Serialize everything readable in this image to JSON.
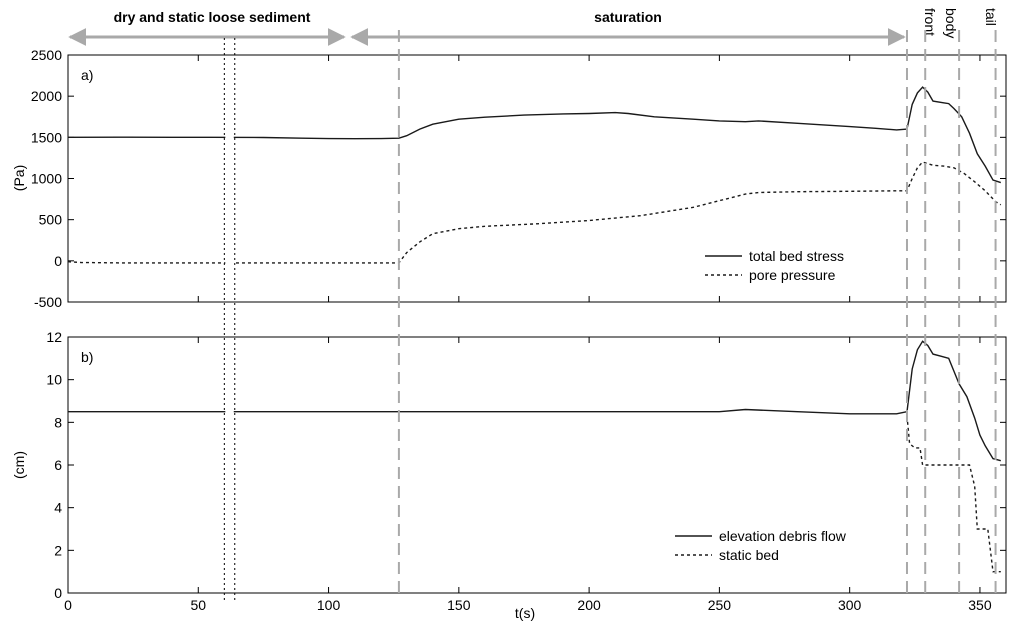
{
  "figure": {
    "phase_labels": {
      "dry": "dry and static loose sediment",
      "saturation": "saturation",
      "front": "front",
      "body": "body",
      "tail": "tail"
    },
    "xlabel": "t(s)"
  },
  "colors": {
    "line": "#1a1a1a",
    "gray": "#a9a9a9",
    "axis": "#000000"
  },
  "chart_data": [
    {
      "type": "line",
      "panel_label": "a)",
      "ylabel": "(Pa)",
      "xlim": [
        0,
        360
      ],
      "ylim": [
        -500,
        2500
      ],
      "x_ticks": [
        0,
        50,
        100,
        150,
        200,
        250,
        300,
        350
      ],
      "y_ticks": [
        -500,
        0,
        500,
        1000,
        1500,
        2000,
        2500
      ],
      "legend_position": "lower-right",
      "series": [
        {
          "name": "total bed stress",
          "style": "solid",
          "points": [
            [
              0,
              1500
            ],
            [
              20,
              1502
            ],
            [
              40,
              1500
            ],
            [
              55,
              1500
            ],
            [
              75,
              1498
            ],
            [
              90,
              1490
            ],
            [
              100,
              1485
            ],
            [
              110,
              1483
            ],
            [
              120,
              1485
            ],
            [
              127,
              1490
            ],
            [
              130,
              1520
            ],
            [
              135,
              1600
            ],
            [
              140,
              1660
            ],
            [
              150,
              1720
            ],
            [
              160,
              1745
            ],
            [
              175,
              1770
            ],
            [
              190,
              1785
            ],
            [
              200,
              1790
            ],
            [
              210,
              1800
            ],
            [
              215,
              1790
            ],
            [
              225,
              1750
            ],
            [
              240,
              1720
            ],
            [
              250,
              1700
            ],
            [
              260,
              1690
            ],
            [
              265,
              1700
            ],
            [
              280,
              1670
            ],
            [
              300,
              1630
            ],
            [
              310,
              1610
            ],
            [
              318,
              1590
            ],
            [
              322,
              1600
            ],
            [
              324,
              1900
            ],
            [
              326,
              2040
            ],
            [
              328,
              2110
            ],
            [
              330,
              2050
            ],
            [
              332,
              1940
            ],
            [
              336,
              1920
            ],
            [
              338,
              1910
            ],
            [
              340,
              1850
            ],
            [
              343,
              1750
            ],
            [
              346,
              1550
            ],
            [
              349,
              1300
            ],
            [
              352,
              1150
            ],
            [
              355,
              980
            ],
            [
              358,
              950
            ]
          ]
        },
        {
          "name": "pore pressure",
          "style": "dashed",
          "points": [
            [
              0,
              -10
            ],
            [
              5,
              -20
            ],
            [
              20,
              -25
            ],
            [
              55,
              -25
            ],
            [
              75,
              -25
            ],
            [
              100,
              -25
            ],
            [
              127,
              -25
            ],
            [
              130,
              100
            ],
            [
              135,
              230
            ],
            [
              140,
              330
            ],
            [
              150,
              390
            ],
            [
              160,
              420
            ],
            [
              180,
              450
            ],
            [
              200,
              490
            ],
            [
              220,
              550
            ],
            [
              240,
              650
            ],
            [
              260,
              810
            ],
            [
              265,
              830
            ],
            [
              280,
              840
            ],
            [
              300,
              845
            ],
            [
              318,
              850
            ],
            [
              322,
              850
            ],
            [
              324,
              1000
            ],
            [
              326,
              1130
            ],
            [
              328,
              1200
            ],
            [
              330,
              1180
            ],
            [
              332,
              1160
            ],
            [
              336,
              1150
            ],
            [
              340,
              1130
            ],
            [
              344,
              1060
            ],
            [
              348,
              960
            ],
            [
              352,
              850
            ],
            [
              356,
              720
            ],
            [
              358,
              680
            ]
          ]
        }
      ]
    },
    {
      "type": "line",
      "panel_label": "b)",
      "ylabel": "(cm)",
      "xlim": [
        0,
        360
      ],
      "ylim": [
        0,
        12
      ],
      "x_ticks": [
        0,
        50,
        100,
        150,
        200,
        250,
        300,
        350
      ],
      "y_ticks": [
        0,
        2,
        4,
        6,
        8,
        10,
        12
      ],
      "legend_position": "lower-right",
      "series": [
        {
          "name": "elevation debris flow",
          "style": "solid",
          "points": [
            [
              0,
              8.5
            ],
            [
              55,
              8.5
            ],
            [
              75,
              8.5
            ],
            [
              100,
              8.5
            ],
            [
              150,
              8.5
            ],
            [
              200,
              8.5
            ],
            [
              250,
              8.5
            ],
            [
              260,
              8.6
            ],
            [
              280,
              8.5
            ],
            [
              300,
              8.4
            ],
            [
              318,
              8.4
            ],
            [
              322,
              8.5
            ],
            [
              324,
              10.5
            ],
            [
              326,
              11.4
            ],
            [
              328,
              11.8
            ],
            [
              330,
              11.6
            ],
            [
              332,
              11.2
            ],
            [
              335,
              11.1
            ],
            [
              338,
              11.0
            ],
            [
              340,
              10.4
            ],
            [
              342,
              9.8
            ],
            [
              345,
              9.2
            ],
            [
              348,
              8.2
            ],
            [
              350,
              7.4
            ],
            [
              352,
              6.9
            ],
            [
              355,
              6.3
            ],
            [
              358,
              6.2
            ]
          ]
        },
        {
          "name": "static bed",
          "style": "dashed",
          "points": [
            [
              322,
              8.3
            ],
            [
              323,
              7.0
            ],
            [
              325,
              6.8
            ],
            [
              327,
              6.8
            ],
            [
              328,
              6.0
            ],
            [
              332,
              6.0
            ],
            [
              340,
              6.0
            ],
            [
              342,
              6.0
            ],
            [
              346,
              6.0
            ],
            [
              348,
              5.0
            ],
            [
              349,
              3.0
            ],
            [
              353,
              3.0
            ],
            [
              354,
              2.0
            ],
            [
              355,
              1.0
            ],
            [
              358,
              1.0
            ]
          ]
        }
      ]
    }
  ]
}
